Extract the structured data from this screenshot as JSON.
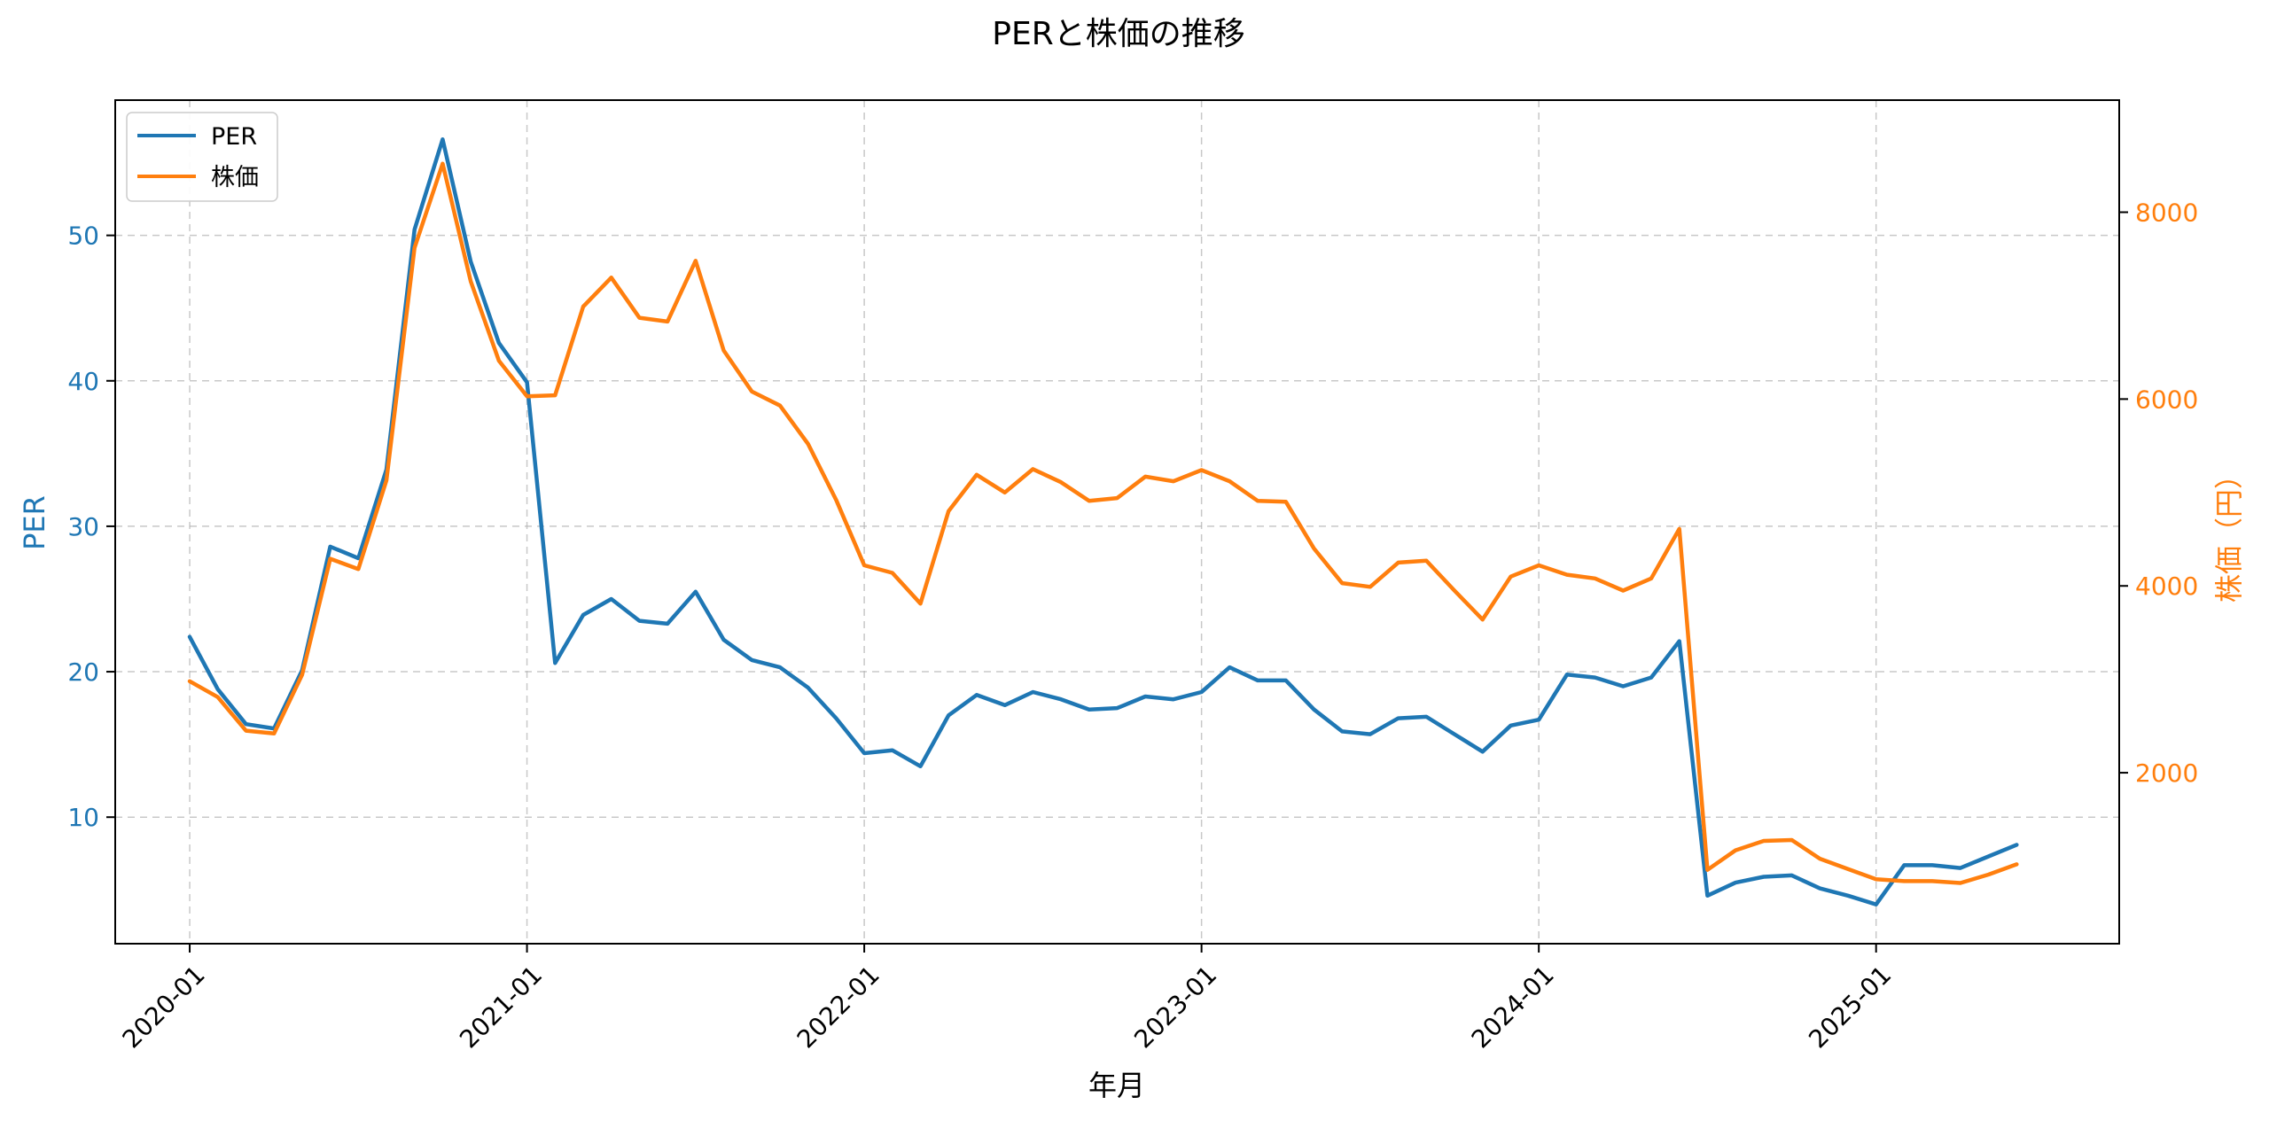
{
  "chart_data": {
    "type": "line",
    "title": "PERと株価の推移",
    "xlabel": "年月",
    "ylabel_left": "PER",
    "ylabel_right": "株価（円）",
    "x_ticks": [
      "2020-01",
      "2021-01",
      "2022-01",
      "2023-01",
      "2024-01",
      "2025-01"
    ],
    "y_left_ticks": [
      "10",
      "20",
      "30",
      "40",
      "50"
    ],
    "y_right_ticks": [
      "2000",
      "4000",
      "6000",
      "8000"
    ],
    "ylim_left": [
      1.3,
      59.3
    ],
    "ylim_right": [
      170,
      9200
    ],
    "x_start": "2020-01",
    "x_end": "2025-06",
    "xlim_months": [
      -2.65,
      68.65
    ],
    "colors": {
      "per": "#1f77b4",
      "price": "#ff7f0e",
      "grid": "#b0b0b0"
    },
    "legend": {
      "location": "top-left",
      "entries": [
        "PER",
        "株価"
      ]
    },
    "series": [
      {
        "name": "PER",
        "axis": "left",
        "values": [
          22.4,
          18.8,
          16.4,
          16.1,
          20.1,
          28.6,
          27.8,
          33.9,
          50.4,
          56.6,
          48.2,
          42.6,
          39.9,
          20.6,
          23.9,
          25.0,
          23.5,
          23.3,
          25.5,
          22.2,
          20.8,
          20.3,
          18.9,
          16.8,
          14.4,
          14.6,
          13.5,
          17.0,
          18.4,
          17.7,
          18.6,
          18.1,
          17.4,
          17.5,
          18.3,
          18.1,
          18.6,
          20.3,
          19.4,
          19.4,
          17.4,
          15.9,
          15.7,
          16.8,
          16.9,
          15.7,
          14.5,
          16.3,
          16.7,
          19.8,
          19.6,
          19.0,
          19.6,
          22.1,
          4.6,
          5.5,
          5.9,
          6.0,
          5.1,
          4.6,
          4.0,
          6.7,
          6.7,
          6.5,
          7.3,
          8.1
        ]
      },
      {
        "name": "株価",
        "axis": "right",
        "values": [
          2980,
          2810,
          2450,
          2420,
          3050,
          4290,
          4180,
          5130,
          7620,
          8520,
          7260,
          6410,
          6030,
          6040,
          6990,
          7300,
          6870,
          6830,
          7480,
          6520,
          6080,
          5930,
          5520,
          4920,
          4220,
          4140,
          3810,
          4800,
          5190,
          5000,
          5250,
          5110,
          4910,
          4940,
          5170,
          5120,
          5240,
          5120,
          4910,
          4900,
          4400,
          4030,
          3990,
          4250,
          4270,
          3950,
          3640,
          4100,
          4220,
          4120,
          4080,
          3950,
          4080,
          4610,
          960,
          1170,
          1270,
          1280,
          1080,
          970,
          860,
          840,
          840,
          820,
          910,
          1020
        ]
      }
    ]
  }
}
